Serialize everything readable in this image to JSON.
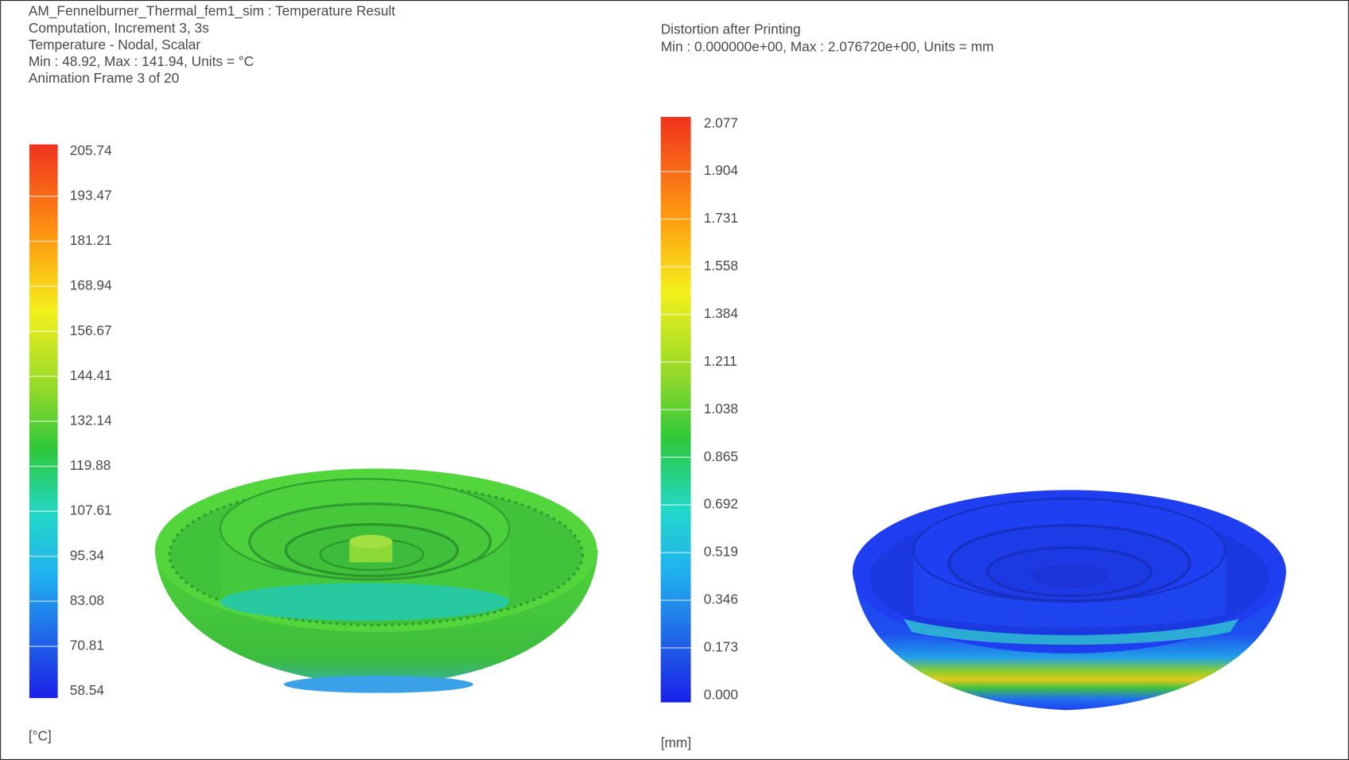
{
  "left": {
    "header": [
      "AM_Fennelburner_Thermal_fem1_sim : Temperature Result",
      "Computation, Increment 3, 3s",
      "Temperature - Nodal, Scalar",
      "Min : 48.92, Max : 141.94, Units = °C",
      "Animation Frame 3 of 20"
    ],
    "legend": {
      "labels": [
        "205.74",
        "193.47",
        "181.21",
        "168.94",
        "156.67",
        "144.41",
        "132.14",
        "119.88",
        "107.61",
        "95.34",
        "83.08",
        "70.81",
        "58.54"
      ],
      "unit": "[°C]"
    }
  },
  "right": {
    "header": [
      "Distortion after Printing",
      "Min : 0.000000e+00, Max : 2.076720e+00, Units = mm"
    ],
    "legend": {
      "labels": [
        "2.077",
        "1.904",
        "1.731",
        "1.558",
        "1.384",
        "1.211",
        "1.038",
        "0.865",
        "0.692",
        "0.519",
        "0.346",
        "0.173",
        "0.000"
      ],
      "unit": "[mm]"
    }
  }
}
